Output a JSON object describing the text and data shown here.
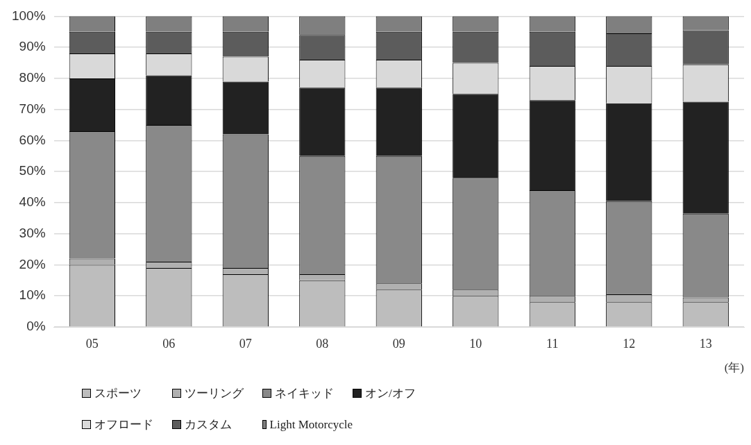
{
  "chart_data": {
    "type": "bar",
    "stacked": true,
    "categories": [
      "05",
      "06",
      "07",
      "08",
      "09",
      "10",
      "11",
      "12",
      "13"
    ],
    "xlabel": "(年)",
    "ylim": [
      0,
      100
    ],
    "yticks": [
      {
        "value": 0,
        "label": "0%"
      },
      {
        "value": 10,
        "label": "10%"
      },
      {
        "value": 20,
        "label": "20%"
      },
      {
        "value": 30,
        "label": "30%"
      },
      {
        "value": 40,
        "label": "40%"
      },
      {
        "value": 50,
        "label": "50%"
      },
      {
        "value": 60,
        "label": "60%"
      },
      {
        "value": 70,
        "label": "70%"
      },
      {
        "value": 80,
        "label": "80%"
      },
      {
        "value": 90,
        "label": "90%"
      },
      {
        "value": 100,
        "label": "100%"
      }
    ],
    "grid": "y",
    "legend": "bottom",
    "series": [
      {
        "name": "スポーツ",
        "color": "#bdbdbd",
        "values": [
          20,
          19,
          17,
          15,
          12,
          10,
          8,
          8,
          8
        ]
      },
      {
        "name": "ツーリング",
        "color": "#b0b0b0",
        "values": [
          2,
          2,
          2,
          2,
          2,
          2,
          2,
          2.5,
          1.5
        ]
      },
      {
        "name": "ネイキッド",
        "color": "#898989",
        "values": [
          41,
          44,
          43,
          38,
          41,
          36,
          34,
          30,
          27
        ]
      },
      {
        "name": "オン/オフ",
        "color": "#222222",
        "values": [
          17,
          16,
          17,
          22,
          22,
          27,
          29,
          31.5,
          36
        ]
      },
      {
        "name": "オフロード",
        "color": "#d9d9d9",
        "values": [
          8,
          7,
          8,
          9,
          9,
          10,
          11,
          12,
          12
        ]
      },
      {
        "name": "カスタム",
        "color": "#5c5c5c",
        "values": [
          7,
          7,
          8,
          8,
          9,
          10,
          11,
          10.5,
          11
        ]
      },
      {
        "name": "Light Motorcycle",
        "color": "#7f7f7f",
        "values": [
          5,
          5,
          5,
          6,
          5,
          5,
          5,
          5.5,
          4.5
        ]
      }
    ]
  }
}
